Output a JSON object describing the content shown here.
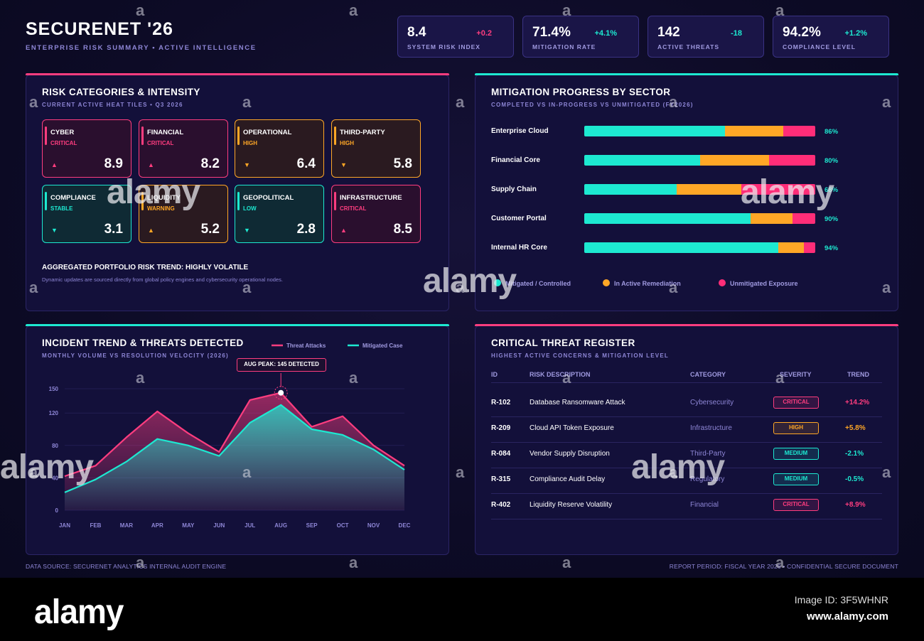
{
  "header": {
    "title": "SECURENET '26",
    "subtitle": "ENTERPRISE RISK SUMMARY • ACTIVE INTELLIGENCE"
  },
  "kpis": [
    {
      "value": "8.4",
      "delta": "+0.2",
      "label": "SYSTEM RISK INDEX",
      "color": "#ff3d7f"
    },
    {
      "value": "71.4%",
      "delta": "+4.1%",
      "label": "MITIGATION RATE",
      "color": "#1de9d1"
    },
    {
      "value": "142",
      "delta": "-18",
      "label": "ACTIVE THREATS",
      "color": "#1de9d1"
    },
    {
      "value": "94.2%",
      "delta": "+1.2%",
      "label": "COMPLIANCE LEVEL",
      "color": "#1de9d1"
    }
  ],
  "risk_panel": {
    "title": "RISK CATEGORIES & INTENSITY",
    "subtitle": "CURRENT ACTIVE HEAT TILES • Q3 2026",
    "tiles": [
      {
        "name": "CYBER",
        "status": "CRITICAL",
        "score": "8.9",
        "trend": "up",
        "color": "#ff3d7f"
      },
      {
        "name": "FINANCIAL",
        "status": "CRITICAL",
        "score": "8.2",
        "trend": "up",
        "color": "#ff3d7f"
      },
      {
        "name": "OPERATIONAL",
        "status": "HIGH",
        "score": "6.4",
        "trend": "down",
        "color": "#ffa726"
      },
      {
        "name": "THIRD-PARTY",
        "status": "HIGH",
        "score": "5.8",
        "trend": "down",
        "color": "#ffa726"
      },
      {
        "name": "COMPLIANCE",
        "status": "STABLE",
        "score": "3.1",
        "trend": "down",
        "color": "#1de9d1"
      },
      {
        "name": "LIQUIDITY",
        "status": "WARNING",
        "score": "5.2",
        "trend": "up",
        "color": "#ffa726"
      },
      {
        "name": "GEOPOLITICAL",
        "status": "LOW",
        "score": "2.8",
        "trend": "down",
        "color": "#1de9d1"
      },
      {
        "name": "INFRASTRUCTURE",
        "status": "CRITICAL",
        "score": "8.5",
        "trend": "up",
        "color": "#ff3d7f"
      }
    ],
    "trend_title": "AGGREGATED PORTFOLIO RISK TREND: HIGHLY VOLATILE",
    "trend_note": "Dynamic updates are sourced directly from global policy engines and cybersecurity operational nodes."
  },
  "mitigation_panel": {
    "title": "MITIGATION PROGRESS BY SECTOR",
    "subtitle": "COMPLETED VS IN-PROGRESS VS UNMITIGATED (FY2026)",
    "legend": [
      "Mitigated / Controlled",
      "In Active Remediation",
      "Unmitigated Exposure"
    ],
    "colors": [
      "#1de9d1",
      "#ffa726",
      "#ff2d78"
    ]
  },
  "incident_panel": {
    "title": "INCIDENT TREND & THREATS DETECTED",
    "subtitle": "MONTHLY VOLUME VS RESOLUTION VELOCITY (2026)",
    "callout": "AUG PEAK: 145 DETECTED"
  },
  "register_panel": {
    "title": "CRITICAL THREAT REGISTER",
    "subtitle": "HIGHEST ACTIVE CONCERNS & MITIGATION LEVEL",
    "headers": [
      "ID",
      "RISK DESCRIPTION",
      "CATEGORY",
      "SEVERITY",
      "TREND"
    ],
    "rows": [
      {
        "id": "R-102",
        "desc": "Database Ransomware Attack",
        "category": "Cybersecurity",
        "severity": "CRITICAL",
        "trend": "+14.2%",
        "color": "#ff3d7f"
      },
      {
        "id": "R-209",
        "desc": "Cloud API Token Exposure",
        "category": "Infrastructure",
        "severity": "HIGH",
        "trend": "+5.8%",
        "color": "#ffa726"
      },
      {
        "id": "R-084",
        "desc": "Vendor Supply Disruption",
        "category": "Third-Party",
        "severity": "MEDIUM",
        "trend": "-2.1%",
        "color": "#1de9d1"
      },
      {
        "id": "R-315",
        "desc": "Compliance Audit Delay",
        "category": "Regulatory",
        "severity": "MEDIUM",
        "trend": "-0.5%",
        "color": "#1de9d1"
      },
      {
        "id": "R-402",
        "desc": "Liquidity Reserve Volatility",
        "category": "Financial",
        "severity": "CRITICAL",
        "trend": "+8.9%",
        "color": "#ff3d7f"
      }
    ]
  },
  "footer": {
    "left": "DATA SOURCE: SECURENET ANALYTICS INTERNAL AUDIT ENGINE",
    "right": "REPORT PERIOD: FISCAL YEAR 2026 • CONFIDENTIAL SECURE DOCUMENT"
  },
  "watermark": {
    "brand": "alamy",
    "mark": "a",
    "image_id": "Image ID: 3F5WHNR",
    "url": "www.alamy.com"
  },
  "chart_data": [
    {
      "type": "bar",
      "stacked": true,
      "categories": [
        "Enterprise Cloud",
        "Financial Core",
        "Supply Chain",
        "Customer Portal",
        "Internal HR Core"
      ],
      "series": [
        {
          "name": "Mitigated / Controlled",
          "values": [
            61,
            50,
            40,
            72,
            84
          ]
        },
        {
          "name": "In Active Remediation",
          "values": [
            25,
            30,
            28,
            18,
            11
          ]
        },
        {
          "name": "Unmitigated Exposure",
          "values": [
            14,
            20,
            32,
            10,
            5
          ]
        }
      ],
      "labels": [
        "86%",
        "80%",
        "68%",
        "90%",
        "94%"
      ],
      "xlim": [
        0,
        100
      ]
    },
    {
      "type": "area",
      "categories": [
        "JAN",
        "FEB",
        "MAR",
        "APR",
        "MAY",
        "JUN",
        "JUL",
        "AUG",
        "SEP",
        "OCT",
        "NOV",
        "DEC"
      ],
      "series": [
        {
          "name": "Threat Attacks",
          "values": [
            42,
            55,
            90,
            122,
            95,
            72,
            136,
            145,
            103,
            116,
            80,
            55
          ],
          "color": "#ff3d7f"
        },
        {
          "name": "Mitigated Case",
          "values": [
            22,
            38,
            60,
            88,
            80,
            67,
            108,
            130,
            100,
            93,
            75,
            50
          ],
          "color": "#1de9d1"
        }
      ],
      "yticks": [
        "0",
        "40",
        "80",
        "120",
        "150"
      ],
      "ylim": [
        0,
        150
      ],
      "grid": true,
      "legend": "top-right"
    }
  ]
}
